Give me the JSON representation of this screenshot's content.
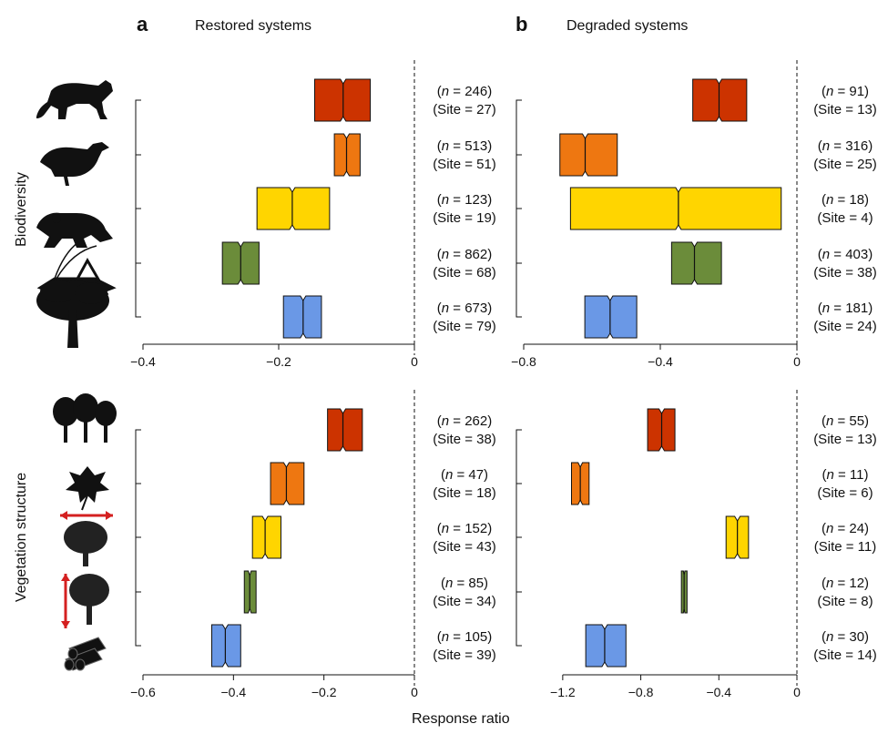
{
  "panels": [
    {
      "letter": "a",
      "title": "Restored systems"
    },
    {
      "letter": "b",
      "title": "Degraded systems"
    }
  ],
  "group_labels": [
    "Biodiversity",
    "Vegetation structure"
  ],
  "icons": {
    "biodiversity": [
      "puma-silhouette-icon",
      "bird-silhouette-icon",
      "frog-silhouette-icon",
      "grasshopper-silhouette-icon",
      "tree-silhouette-icon"
    ],
    "vegetation": [
      "tree-stand-icon",
      "leaf-icon",
      "canopy-width-tree-icon",
      "tree-height-icon",
      "log-pile-icon"
    ]
  },
  "colors": [
    "#cc3300",
    "#ee7711",
    "#ffd500",
    "#6b8c3a",
    "#6a98e6"
  ],
  "xlabel": "Response ratio",
  "chart_data": [
    {
      "type": "box",
      "panel": "a",
      "group": "Biodiversity",
      "title": "Restored systems",
      "xlim": [
        -0.4,
        0
      ],
      "xticks": [
        -0.4,
        -0.2,
        0
      ],
      "xticklabels": [
        "−0.4",
        "−0.2",
        "0"
      ],
      "boxes": [
        {
          "q1": -0.147,
          "median": -0.105,
          "q3": -0.065,
          "n_label": "246",
          "site_label": "(Site = 27)"
        },
        {
          "q1": -0.118,
          "median": -0.1,
          "q3": -0.08,
          "n_label": "513",
          "site_label": "(Site = 51)"
        },
        {
          "q1": -0.232,
          "median": -0.18,
          "q3": -0.125,
          "n_label": "123",
          "site_label": "(Site = 19)"
        },
        {
          "q1": -0.283,
          "median": -0.256,
          "q3": -0.229,
          "n_label": "862",
          "site_label": "(Site = 68)"
        },
        {
          "q1": -0.193,
          "median": -0.164,
          "q3": -0.137,
          "n_label": "673",
          "site_label": "(Site = 79)"
        }
      ]
    },
    {
      "type": "box",
      "panel": "b",
      "group": "Biodiversity",
      "title": "Degraded systems",
      "xlim": [
        -0.8,
        0
      ],
      "xticks": [
        -0.8,
        -0.4,
        0
      ],
      "xticklabels": [
        "−0.8",
        "−0.4",
        "0"
      ],
      "boxes": [
        {
          "q1": -0.305,
          "median": -0.228,
          "q3": -0.147,
          "n_label": "91",
          "site_label": "(Site = 13)"
        },
        {
          "q1": -0.694,
          "median": -0.62,
          "q3": -0.526,
          "n_label": "316",
          "site_label": "(Site = 25)"
        },
        {
          "q1": -0.663,
          "median": -0.347,
          "q3": -0.046,
          "n_label": "18",
          "site_label": "(Site = 4)"
        },
        {
          "q1": -0.367,
          "median": -0.3,
          "q3": -0.221,
          "n_label": "403",
          "site_label": "(Site = 38)"
        },
        {
          "q1": -0.621,
          "median": -0.547,
          "q3": -0.469,
          "n_label": "181",
          "site_label": "(Site = 24)"
        }
      ]
    },
    {
      "type": "box",
      "panel": "a",
      "group": "Vegetation structure",
      "title": "Restored systems",
      "xlim": [
        -0.6,
        0
      ],
      "xticks": [
        -0.6,
        -0.4,
        -0.2,
        0
      ],
      "xticklabels": [
        "−0.6",
        "−0.4",
        "−0.2",
        "0"
      ],
      "boxes": [
        {
          "q1": -0.192,
          "median": -0.158,
          "q3": -0.115,
          "n_label": "262",
          "site_label": "(Site = 38)"
        },
        {
          "q1": -0.318,
          "median": -0.283,
          "q3": -0.244,
          "n_label": "47",
          "site_label": "(Site = 18)"
        },
        {
          "q1": -0.358,
          "median": -0.33,
          "q3": -0.295,
          "n_label": "152",
          "site_label": "(Site = 43)"
        },
        {
          "q1": -0.376,
          "median": -0.364,
          "q3": -0.35,
          "n_label": "85",
          "site_label": "(Site = 34)"
        },
        {
          "q1": -0.448,
          "median": -0.418,
          "q3": -0.384,
          "n_label": "105",
          "site_label": "(Site = 39)"
        }
      ]
    },
    {
      "type": "box",
      "panel": "b",
      "group": "Vegetation structure",
      "title": "Degraded systems",
      "xlim": [
        -1.4,
        0
      ],
      "xticks": [
        -1.2,
        -0.8,
        -0.4,
        0
      ],
      "xticklabels": [
        "−1.2",
        "−0.8",
        "−0.4",
        "0"
      ],
      "boxes": [
        {
          "q1": -0.765,
          "median": -0.693,
          "q3": -0.625,
          "n_label": "55",
          "site_label": "(Site = 13)"
        },
        {
          "q1": -1.155,
          "median": -1.11,
          "q3": -1.065,
          "n_label": "11",
          "site_label": "(Site = 6)"
        },
        {
          "q1": -0.363,
          "median": -0.305,
          "q3": -0.248,
          "n_label": "24",
          "site_label": "(Site = 11)"
        },
        {
          "q1": -0.592,
          "median": -0.578,
          "q3": -0.563,
          "n_label": "12",
          "site_label": "(Site = 8)"
        },
        {
          "q1": -1.082,
          "median": -0.985,
          "q3": -0.876,
          "n_label": "30",
          "site_label": "(Site = 14)"
        }
      ]
    }
  ]
}
